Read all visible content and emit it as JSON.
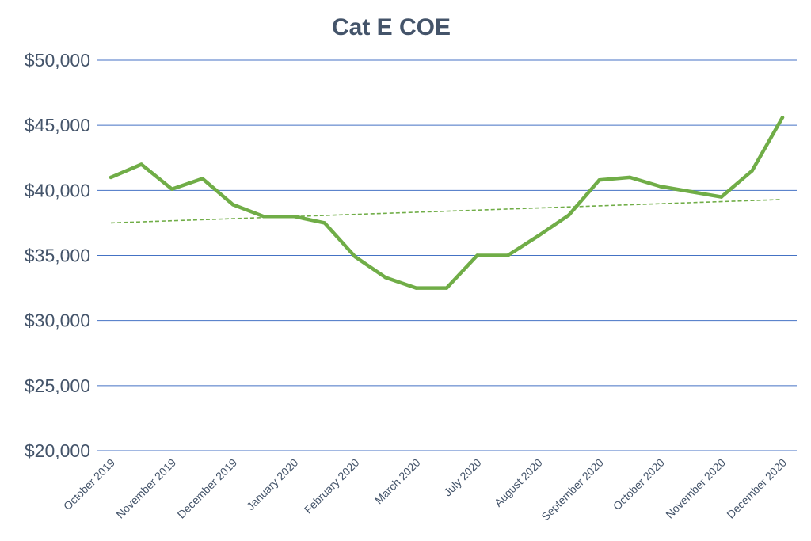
{
  "chart_data": {
    "type": "line",
    "title": "Cat E COE",
    "xlabel": "",
    "ylabel": "",
    "ylim": [
      20000,
      50000
    ],
    "y_ticks": [
      20000,
      25000,
      30000,
      35000,
      40000,
      45000,
      50000
    ],
    "y_tick_labels": [
      "$20,000",
      "$25,000",
      "$30,000",
      "$35,000",
      "$40,000",
      "$45,000",
      "$50,000"
    ],
    "grid": "horizontal",
    "legend": "none",
    "categories": [
      "October 2019",
      "",
      "November 2019",
      "",
      "December 2019",
      "",
      "January 2020",
      "",
      "February 2020",
      "",
      "March 2020",
      "",
      "July 2020",
      "",
      "August 2020",
      "",
      "September 2020",
      "",
      "October 2020",
      "",
      "November 2020",
      "",
      "December 2020"
    ],
    "series": [
      {
        "values": [
          41000,
          42000,
          40100,
          40900,
          38900,
          38000,
          38000,
          37500,
          34900,
          33300,
          32500,
          32500,
          35000,
          35000,
          36500,
          38100,
          40800,
          41000,
          40300,
          39900,
          39500,
          41500,
          45600
        ],
        "color": "#70ad47"
      }
    ],
    "trendline": {
      "style": "linear-dashed",
      "start": 37500,
      "end": 39300,
      "color": "#70ad47"
    },
    "colors": {
      "gridline": "#4472c4",
      "axis_text": "#44546a"
    }
  }
}
